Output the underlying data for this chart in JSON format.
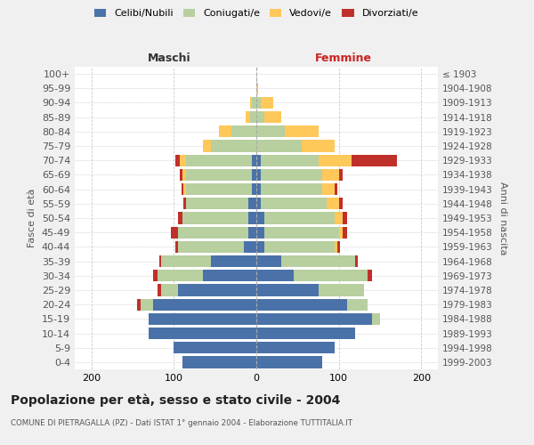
{
  "age_groups": [
    "0-4",
    "5-9",
    "10-14",
    "15-19",
    "20-24",
    "25-29",
    "30-34",
    "35-39",
    "40-44",
    "45-49",
    "50-54",
    "55-59",
    "60-64",
    "65-69",
    "70-74",
    "75-79",
    "80-84",
    "85-89",
    "90-94",
    "95-99",
    "100+"
  ],
  "birth_years": [
    "1999-2003",
    "1994-1998",
    "1989-1993",
    "1984-1988",
    "1979-1983",
    "1974-1978",
    "1969-1973",
    "1964-1968",
    "1959-1963",
    "1954-1958",
    "1949-1953",
    "1944-1948",
    "1939-1943",
    "1934-1938",
    "1929-1933",
    "1924-1928",
    "1919-1923",
    "1914-1918",
    "1909-1913",
    "1904-1908",
    "≤ 1903"
  ],
  "maschi": {
    "celibi": [
      90,
      100,
      130,
      130,
      125,
      95,
      65,
      55,
      15,
      10,
      10,
      10,
      5,
      5,
      5,
      0,
      0,
      0,
      0,
      0,
      0
    ],
    "coniugati": [
      0,
      0,
      0,
      0,
      15,
      20,
      55,
      60,
      80,
      85,
      80,
      75,
      80,
      80,
      80,
      55,
      30,
      8,
      5,
      0,
      0
    ],
    "vedovi": [
      0,
      0,
      0,
      0,
      0,
      0,
      0,
      0,
      0,
      0,
      0,
      0,
      3,
      5,
      8,
      10,
      15,
      5,
      3,
      0,
      0
    ],
    "divorziati": [
      0,
      0,
      0,
      0,
      5,
      5,
      5,
      3,
      3,
      8,
      5,
      3,
      3,
      3,
      5,
      0,
      0,
      0,
      0,
      0,
      0
    ]
  },
  "femmine": {
    "nubili": [
      80,
      95,
      120,
      140,
      110,
      75,
      45,
      30,
      10,
      10,
      10,
      5,
      5,
      5,
      5,
      0,
      0,
      0,
      0,
      0,
      0
    ],
    "coniugate": [
      0,
      0,
      0,
      10,
      25,
      55,
      90,
      90,
      85,
      90,
      85,
      80,
      75,
      75,
      70,
      55,
      35,
      10,
      5,
      0,
      0
    ],
    "vedove": [
      0,
      0,
      0,
      0,
      0,
      0,
      0,
      0,
      3,
      5,
      10,
      15,
      15,
      20,
      40,
      40,
      40,
      20,
      15,
      2,
      0
    ],
    "divorziate": [
      0,
      0,
      0,
      0,
      0,
      0,
      5,
      3,
      3,
      5,
      5,
      5,
      3,
      5,
      55,
      0,
      0,
      0,
      0,
      0,
      0
    ]
  },
  "colors": {
    "celibi": "#4a72a8",
    "coniugati": "#b8cfa0",
    "vedovi": "#ffc85a",
    "divorziati": "#c0302a"
  },
  "xlim": 220,
  "title": "Popolazione per età, sesso e stato civile - 2004",
  "subtitle": "COMUNE DI PIETRAGALLA (PZ) - Dati ISTAT 1° gennaio 2004 - Elaborazione TUTTITALIA.IT",
  "ylabel_left": "Fasce di età",
  "ylabel_right": "Anni di nascita",
  "xlabel_maschi": "Maschi",
  "xlabel_femmine": "Femmine",
  "bg_color": "#f0f0f0",
  "bar_bg_color": "#ffffff"
}
